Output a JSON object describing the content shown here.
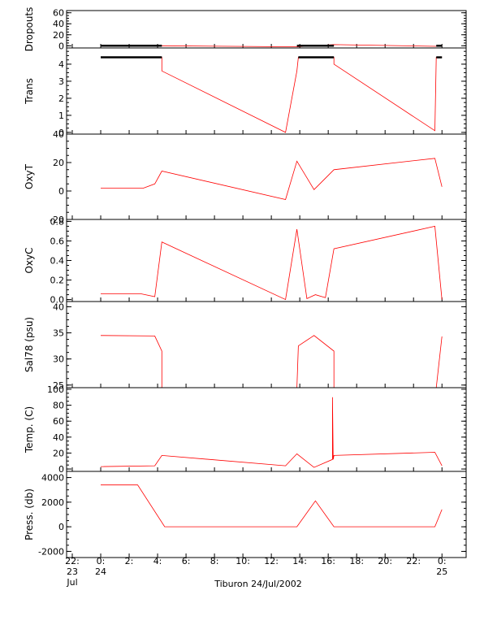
{
  "chart_data": {
    "type": "line",
    "xlabel": "Tiburon 24/Jul/2002",
    "x_ticks": [
      {
        "label": [
          "22:",
          "23",
          "Jul"
        ],
        "hour": -2
      },
      {
        "label": [
          "0:",
          "24"
        ],
        "hour": 0
      },
      {
        "label": [
          "2:"
        ],
        "hour": 2
      },
      {
        "label": [
          "4:"
        ],
        "hour": 4
      },
      {
        "label": [
          "6:"
        ],
        "hour": 6
      },
      {
        "label": [
          "8:"
        ],
        "hour": 8
      },
      {
        "label": [
          "10:"
        ],
        "hour": 10
      },
      {
        "label": [
          "12:"
        ],
        "hour": 12
      },
      {
        "label": [
          "14:"
        ],
        "hour": 14
      },
      {
        "label": [
          "16:"
        ],
        "hour": 16
      },
      {
        "label": [
          "18:"
        ],
        "hour": 18
      },
      {
        "label": [
          "20:"
        ],
        "hour": 20
      },
      {
        "label": [
          "22:"
        ],
        "hour": 22
      },
      {
        "label": [
          "0:",
          "25"
        ],
        "hour": 24
      }
    ],
    "xlim_hours": [
      -2.4,
      25.7
    ],
    "colors": {
      "line": "#ff0000",
      "samples": "#000000",
      "axes": "#000000"
    },
    "panels": [
      {
        "ylabel": "Dropouts",
        "ylim": [
          -4,
          64
        ],
        "yticks": [
          {
            "v": 60,
            "t": "60"
          },
          {
            "v": 40,
            "t": "40"
          },
          {
            "v": 20,
            "t": "20"
          },
          {
            "v": 0,
            "t": "0"
          }
        ],
        "series": [
          {
            "x": [
              0,
              4.3,
              13.8,
              16.4,
              23.6,
              24
            ],
            "y": [
              0,
              0,
              -2,
              2,
              -1,
              0
            ]
          }
        ],
        "samples": [
          {
            "x": [
              0,
              4.3
            ],
            "y": 0
          },
          {
            "x": [
              13.8,
              16.4
            ],
            "y": 0
          },
          {
            "x": [
              23.6,
              24
            ],
            "y": 0
          }
        ]
      },
      {
        "ylabel": "Trans",
        "ylim": [
          -0.1,
          4.95
        ],
        "yticks": [
          {
            "v": 4,
            "t": "4"
          },
          {
            "v": 3,
            "t": "3"
          },
          {
            "v": 2,
            "t": "2"
          },
          {
            "v": 1,
            "t": "1"
          },
          {
            "v": 0,
            "t": "0"
          }
        ],
        "series": [
          {
            "x": [
              0,
              4.3,
              4.3,
              13.0,
              13.8,
              13.9,
              16.4,
              16.4,
              23.5,
              23.6,
              24
            ],
            "y": [
              4.4,
              4.4,
              3.6,
              0,
              3.6,
              4.4,
              4.4,
              4.0,
              0.1,
              4.4,
              4.4
            ]
          }
        ],
        "samples": [
          {
            "x": [
              0,
              4.3
            ],
            "y": 4.4
          },
          {
            "x": [
              13.9,
              16.4
            ],
            "y": 4.4
          },
          {
            "x": [
              23.6,
              24
            ],
            "y": 4.4
          }
        ]
      },
      {
        "ylabel": "OxyT",
        "ylim": [
          -20,
          40
        ],
        "yticks": [
          {
            "v": 40,
            "t": "40"
          },
          {
            "v": 20,
            "t": "20"
          },
          {
            "v": 0,
            "t": "0"
          },
          {
            "v": -20,
            "t": "-20"
          }
        ],
        "series": [
          {
            "x": [
              0,
              3.0,
              3.8,
              4.3,
              13.0,
              13.8,
              15.0,
              16.4,
              23.5,
              24
            ],
            "y": [
              2,
              2,
              5,
              14,
              -6,
              21,
              1,
              15,
              23,
              3
            ]
          }
        ],
        "samples": []
      },
      {
        "ylabel": "OxyC",
        "ylim": [
          -0.02,
          0.82
        ],
        "yticks": [
          {
            "v": 0.8,
            "t": "0.8"
          },
          {
            "v": 0.6,
            "t": "0.6"
          },
          {
            "v": 0.4,
            "t": "0.4"
          },
          {
            "v": 0.2,
            "t": "0.2"
          },
          {
            "v": 0.0,
            "t": "0.0"
          }
        ],
        "series": [
          {
            "x": [
              0,
              2.8,
              3.8,
              4.3,
              13.0,
              13.8,
              14.5,
              15.1,
              15.8,
              16.4,
              23.5,
              24
            ],
            "y": [
              0.06,
              0.06,
              0.03,
              0.59,
              0.0,
              0.72,
              0.01,
              0.05,
              0.02,
              0.52,
              0.75,
              0.0
            ]
          }
        ],
        "samples": []
      },
      {
        "ylabel": "Sal78 (psu)",
        "ylim": [
          24.5,
          41
        ],
        "yticks": [
          {
            "v": 40,
            "t": "40"
          },
          {
            "v": 35,
            "t": "35"
          },
          {
            "v": 30,
            "t": "30"
          },
          {
            "v": 25,
            "t": "25"
          }
        ],
        "series": [
          {
            "x": [
              0,
              3.8,
              4.3,
              4.3,
              13.8,
              13.9,
              15.0,
              16.4,
              16.4,
              23.6,
              24
            ],
            "y": [
              34.5,
              34.4,
              31.5,
              24.5,
              24.5,
              32.5,
              34.5,
              31.5,
              24.5,
              24.5,
              34.3
            ]
          }
        ],
        "samples": []
      },
      {
        "ylabel": "Temp. (C)",
        "ylim": [
          -3,
          102
        ],
        "yticks": [
          {
            "v": 100,
            "t": "100"
          },
          {
            "v": 80,
            "t": "80"
          },
          {
            "v": 60,
            "t": "60"
          },
          {
            "v": 40,
            "t": "40"
          },
          {
            "v": 20,
            "t": "20"
          },
          {
            "v": 0,
            "t": "0"
          }
        ],
        "series": [
          {
            "x": [
              0,
              3.8,
              4.3,
              13.0,
              13.8,
              15.0,
              16.3,
              16.3,
              16.35,
              16.4,
              23.5,
              24
            ],
            "y": [
              3,
              4,
              17,
              4,
              19,
              2,
              12,
              90,
              12,
              17,
              21,
              4
            ]
          }
        ],
        "samples": []
      },
      {
        "ylabel": "Press. (db)",
        "ylim": [
          -2500,
          4500
        ],
        "yticks": [
          {
            "v": 4000,
            "t": "4000"
          },
          {
            "v": 2000,
            "t": "2000"
          },
          {
            "v": 0,
            "t": "0"
          },
          {
            "v": -2000,
            "t": "-2000"
          }
        ],
        "series": [
          {
            "x": [
              0,
              2.6,
              4.5,
              13.8,
              15.1,
              16.4,
              23.5,
              24
            ],
            "y": [
              3400,
              3400,
              0,
              0,
              2100,
              0,
              0,
              1400
            ]
          }
        ],
        "samples": []
      }
    ]
  }
}
